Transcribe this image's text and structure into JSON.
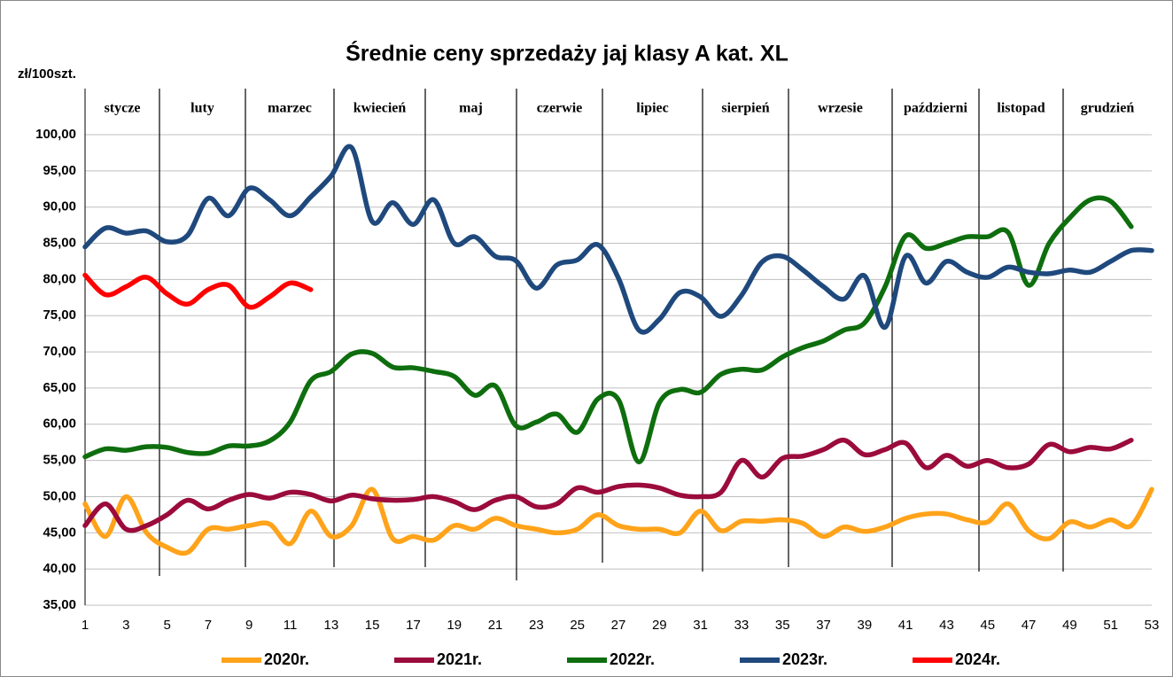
{
  "chart_data": {
    "type": "line",
    "title": "Średnie ceny sprzedaży jaj klasy A kat.  XL",
    "y_label": "zł/100szt.",
    "months": [
      "stycze",
      "luty",
      "marzec",
      "kwiecień",
      "maj",
      "czerwie",
      "lipiec",
      "sierpień",
      "wrzesie",
      "październi",
      "listopad",
      "grudzień"
    ],
    "x": [
      1,
      2,
      3,
      4,
      5,
      6,
      7,
      8,
      9,
      10,
      11,
      12,
      13,
      14,
      15,
      16,
      17,
      18,
      19,
      20,
      21,
      22,
      23,
      24,
      25,
      26,
      27,
      28,
      29,
      30,
      31,
      32,
      33,
      34,
      35,
      36,
      37,
      38,
      39,
      40,
      41,
      42,
      43,
      44,
      45,
      46,
      47,
      48,
      49,
      50,
      51,
      52,
      53
    ],
    "xlim": [
      1,
      53
    ],
    "xticks": [
      1,
      3,
      5,
      7,
      9,
      11,
      13,
      15,
      17,
      19,
      21,
      23,
      25,
      27,
      29,
      31,
      33,
      35,
      37,
      39,
      41,
      43,
      45,
      47,
      49,
      51,
      53
    ],
    "ylim": [
      35,
      100
    ],
    "yticks": [
      {
        "value": 35,
        "label": "35,00"
      },
      {
        "value": 40,
        "label": "40,00"
      },
      {
        "value": 45,
        "label": "45,00"
      },
      {
        "value": 50,
        "label": "50,00"
      },
      {
        "value": 55,
        "label": "55,00"
      },
      {
        "value": 60,
        "label": "60,00"
      },
      {
        "value": 65,
        "label": "65,00"
      },
      {
        "value": 70,
        "label": "70,00"
      },
      {
        "value": 75,
        "label": "75,00"
      },
      {
        "value": 80,
        "label": "80,00"
      },
      {
        "value": 85,
        "label": "85,00"
      },
      {
        "value": 90,
        "label": "90,00"
      },
      {
        "value": 95,
        "label": "95,00"
      },
      {
        "value": 100,
        "label": "100,00"
      }
    ],
    "grid": true,
    "legend": "bottom",
    "series": [
      {
        "name": "2020r.",
        "color": "#ffa31a",
        "values": [
          49,
          44.5,
          50,
          45,
          43,
          42.3,
          45.5,
          45.5,
          46,
          46.2,
          43.5,
          48,
          44.5,
          46,
          51,
          44.2,
          44.5,
          44,
          46,
          45.5,
          47,
          46,
          45.5,
          45,
          45.5,
          47.5,
          46,
          45.5,
          45.5,
          45,
          48,
          45.3,
          46.6,
          46.6,
          46.8,
          46.3,
          44.5,
          45.8,
          45.2,
          45.8,
          47,
          47.6,
          47.6,
          46.8,
          46.5,
          49,
          45.3,
          44.2,
          46.5,
          45.8,
          46.8,
          46,
          51
        ]
      },
      {
        "name": "2021r.",
        "color": "#9b0b3c",
        "values": [
          46,
          49,
          45.5,
          46,
          47.5,
          49.5,
          48.3,
          49.5,
          50.3,
          49.8,
          50.6,
          50.3,
          49.4,
          50.2,
          49.7,
          49.5,
          49.6,
          50,
          49.3,
          48.2,
          49.5,
          50,
          48.6,
          49,
          51.2,
          50.6,
          51.4,
          51.6,
          51.2,
          50.2,
          50,
          50.6,
          55,
          52.7,
          55.3,
          55.6,
          56.5,
          57.8,
          55.8,
          56.5,
          57.4,
          54,
          55.7,
          54.2,
          55,
          54,
          54.5,
          57.2,
          56.2,
          56.8,
          56.6,
          57.8,
          null
        ]
      },
      {
        "name": "2022r.",
        "color": "#0e6e0e",
        "values": [
          55.5,
          56.6,
          56.4,
          56.9,
          56.8,
          56.1,
          56,
          57,
          57,
          57.7,
          60.3,
          66,
          67.3,
          69.7,
          69.8,
          67.9,
          67.8,
          67.3,
          66.6,
          64,
          65.3,
          59.8,
          60.3,
          61.4,
          58.9,
          63.5,
          63.4,
          54.8,
          63,
          64.8,
          64.4,
          66.9,
          67.6,
          67.5,
          69.3,
          70.6,
          71.5,
          73,
          74,
          79,
          86,
          84.3,
          85,
          85.9,
          85.9,
          86.5,
          79.2,
          85,
          88.5,
          91,
          90.8,
          87.3,
          null
        ]
      },
      {
        "name": "2023r.",
        "color": "#1f497d",
        "values": [
          84.5,
          87.1,
          86.4,
          86.7,
          85.2,
          86.1,
          91.2,
          88.8,
          92.6,
          91,
          88.8,
          91.4,
          94.3,
          98.2,
          88,
          90.6,
          87.6,
          91,
          85,
          85.9,
          83.2,
          82.6,
          78.8,
          82,
          82.7,
          84.8,
          80.2,
          73,
          74.5,
          78.2,
          77.6,
          74.9,
          77.8,
          82.4,
          83.2,
          81.3,
          79,
          77.3,
          80.5,
          73.4,
          83.2,
          79.5,
          82.5,
          81,
          80.3,
          81.7,
          81,
          80.8,
          81.3,
          81,
          82.5,
          84,
          84
        ]
      },
      {
        "name": "2024r.",
        "color": "#ff0000",
        "values": [
          80.6,
          77.9,
          79,
          80.3,
          78,
          76.6,
          78.6,
          79.2,
          76.2,
          77.6,
          79.5,
          78.6,
          null,
          null,
          null,
          null,
          null,
          null,
          null,
          null,
          null,
          null,
          null,
          null,
          null,
          null,
          null,
          null,
          null,
          null,
          null,
          null,
          null,
          null,
          null,
          null,
          null,
          null,
          null,
          null,
          null,
          null,
          null,
          null,
          null,
          null,
          null,
          null,
          null,
          null,
          null,
          null,
          null
        ]
      }
    ]
  }
}
